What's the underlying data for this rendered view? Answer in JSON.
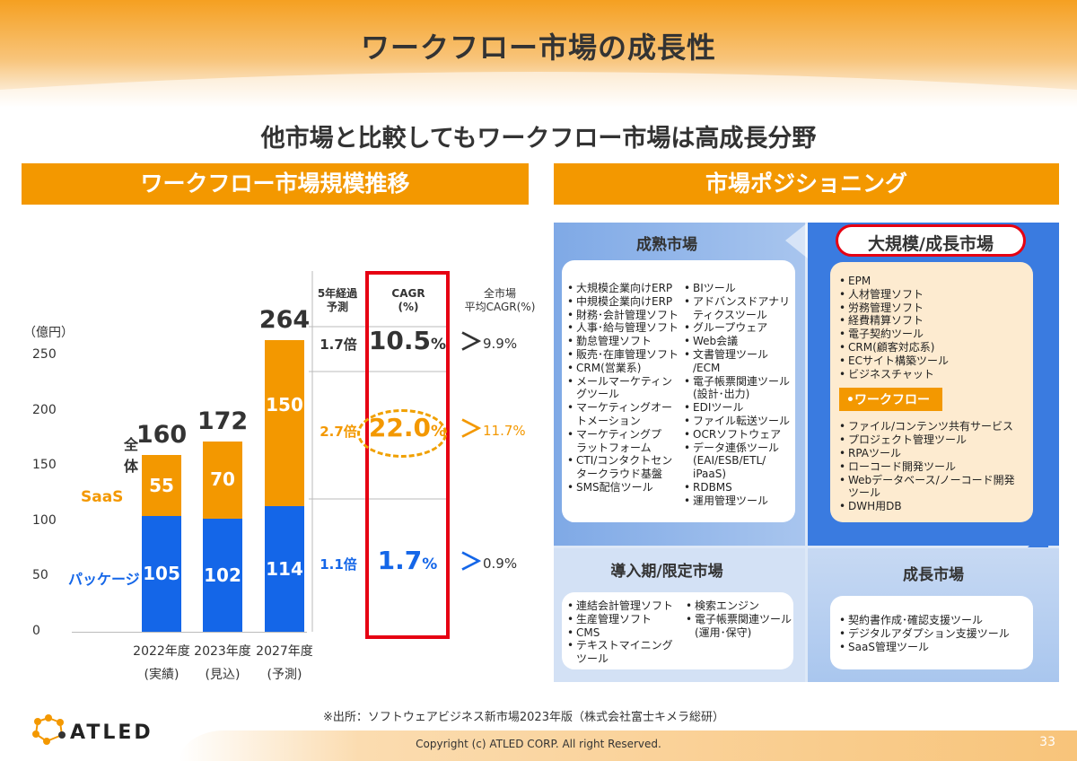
{
  "title": "ワークフロー市場の成長性",
  "subtitle": "他市場と比較してもワークフロー市場は高成長分野",
  "left_banner": "ワークフロー市場規模推移",
  "right_banner": "市場ポジショニング",
  "chart_data": {
    "type": "bar",
    "stacked": true,
    "yunit": "（億円）",
    "ylim": [
      0,
      250
    ],
    "yticks": [
      "250",
      "200",
      "150",
      "100",
      "50",
      "0"
    ],
    "categories": [
      "2022年度",
      "2023年度",
      "2027年度"
    ],
    "category_notes": [
      "(実績)",
      "(見込)",
      "(予測)"
    ],
    "series": [
      {
        "name": "パッケージ",
        "values": [
          105,
          102,
          114
        ],
        "color": "#1466e8"
      },
      {
        "name": "SaaS",
        "values": [
          55,
          70,
          150
        ],
        "color": "#f39800"
      }
    ],
    "totals_label": "全体",
    "totals": [
      "160",
      "172",
      "264"
    ],
    "labels": {
      "pkg": [
        "105",
        "102",
        "114"
      ],
      "saas": [
        "55",
        "70",
        "150"
      ]
    }
  },
  "table": {
    "col1_header": "5年経過\n予測",
    "col2_header": "CAGR\n(%)",
    "col3_header": "全市場\n平均CAGR(%)",
    "rows": [
      {
        "mult": "1.7倍",
        "cagr": "10.5",
        "avg": "9.9%",
        "color": "#333333"
      },
      {
        "mult": "2.7倍",
        "cagr": "22.0",
        "avg": "11.7%",
        "color": "#f39800"
      },
      {
        "mult": "1.1倍",
        "cagr": "1.7",
        "avg": "0.9%",
        "color": "#1466e8"
      }
    ],
    "pct": "%",
    "chevron": "＞"
  },
  "positioning": {
    "mature": {
      "title": "成熟市場",
      "col1": [
        "大規模企業向けERP",
        "中規模企業向けERP",
        "財務･会計管理ソフト",
        "人事･給与管理ソフト",
        "勤怠管理ソフト",
        "販売･在庫管理ソフト",
        "CRM(営業系)",
        "メールマーケティン\nグツール",
        "マーケティングオー\nトメーション",
        "マーケティングプ\nラットフォーム",
        "CTI/コンタクトセン\nタークラウド基盤",
        "SMS配信ツール"
      ],
      "col2": [
        "BIツール",
        "アドバンスドアナリ\nティクスツール",
        "グループウェア",
        "Web会議",
        "文書管理ツール\n/ECM",
        "電子帳票関連ツール\n(設計･出力)",
        "EDIツール",
        "ファイル転送ツール",
        "OCRソフトウェア",
        "データ連係ツール\n(EAI/ESB/ETL/\niPaaS)",
        "RDBMS",
        "運用管理ツール"
      ]
    },
    "large": {
      "title": "大規模/成長市場",
      "items_top": [
        "EPM",
        "人材管理ソフト",
        "労務管理ソフト",
        "経費精算ソフト",
        "電子契約ツール",
        "CRM(顧客対応系)",
        "ECサイト構築ツール",
        "ビジネスチャット"
      ],
      "highlight": "•ワークフロー",
      "items_bottom": [
        "ファイル/コンテンツ共有サービス",
        "プロジェクト管理ツール",
        "RPAツール",
        "ローコード開発ツール",
        "Webデータベース/ノーコード開発\nツール",
        "DWH用DB"
      ]
    },
    "intro": {
      "title": "導入期/限定市場",
      "col1": [
        "連結会計管理ソフト",
        "生産管理ソフト",
        "CMS",
        "テキストマイニング\nツール"
      ],
      "col2": [
        "検索エンジン",
        "電子帳票関連ツール\n(運用･保守)"
      ]
    },
    "growth": {
      "title": "成長市場",
      "items": [
        "契約書作成･確認支援ツール",
        "デジタルアダプション支援ツール",
        "SaaS管理ツール"
      ]
    }
  },
  "source": "※出所：ソフトウェアビジネス新市場2023年版（株式会社富士キメラ総研）",
  "copyright": "Copyright (c)  ATLED CORP. All right Reserved.",
  "page_number": "33",
  "logo": "ATLED"
}
